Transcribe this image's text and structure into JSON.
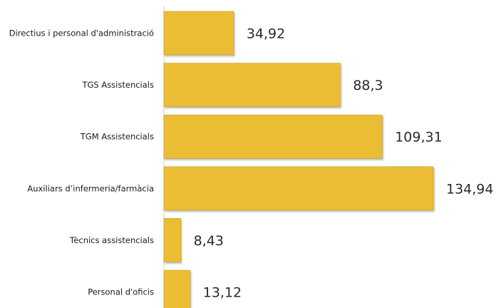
{
  "chart_data": {
    "type": "bar",
    "orientation": "horizontal",
    "categories": [
      "Directius i personal d'administració",
      "TGS Assistencials",
      "TGM Assistencials",
      "Auxiliars d’infermeria/farmàcia",
      "Tècnics assistencials",
      "Personal d'oficis"
    ],
    "values": [
      34.92,
      88.3,
      109.31,
      134.94,
      8.43,
      13.12
    ],
    "value_labels": [
      "34,92",
      "88,3",
      "109,31",
      "134,94",
      "8,43",
      "13,12"
    ],
    "title": "",
    "xlabel": "",
    "ylabel": "",
    "xlim": [
      0,
      134.94
    ],
    "grid": false,
    "legend": "none",
    "bar_color": "#EBBD36",
    "bar_edge_color": "#C89B1E"
  }
}
